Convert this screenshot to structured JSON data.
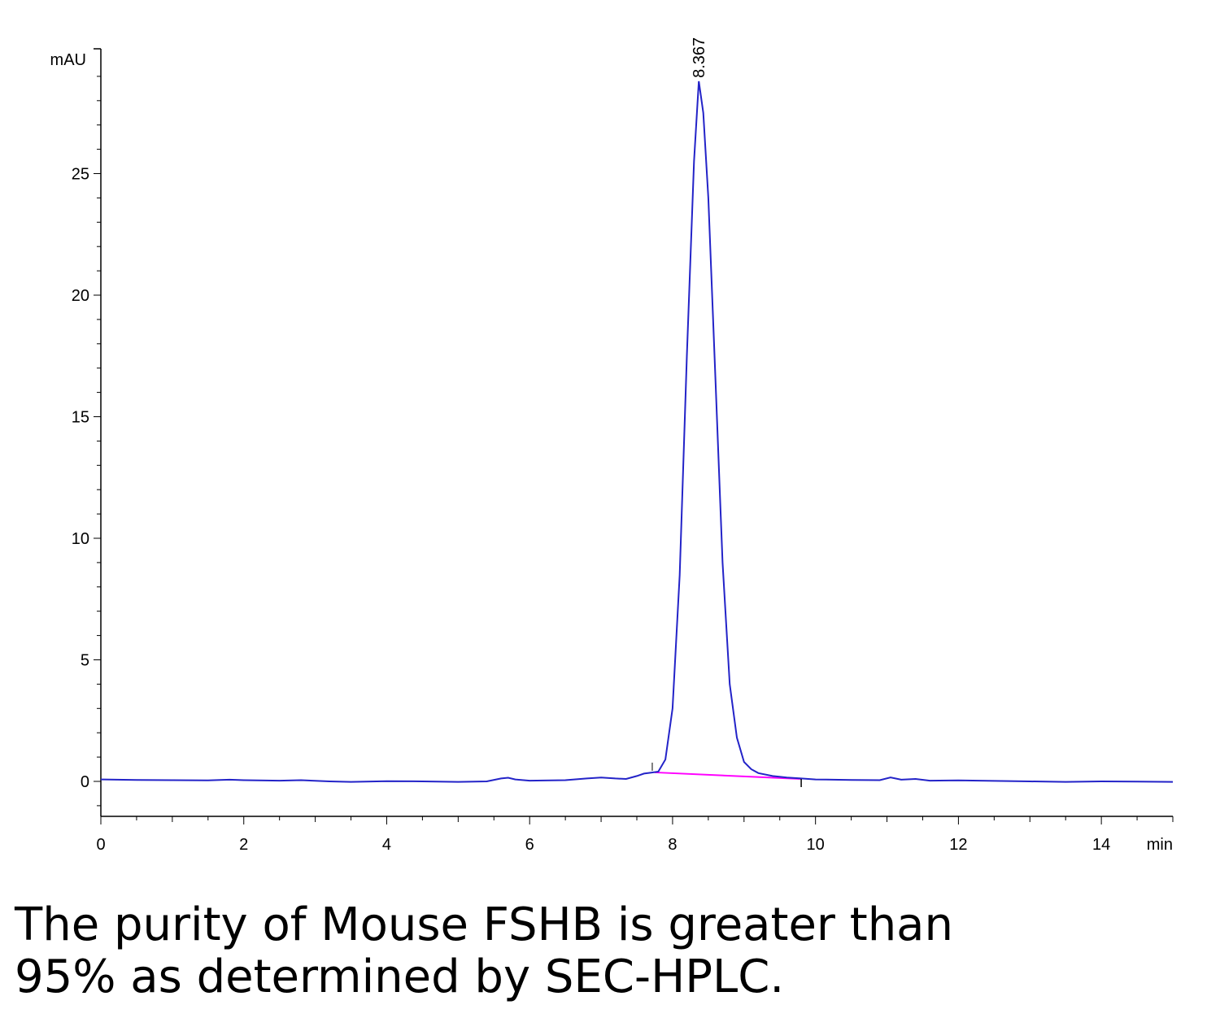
{
  "chart_data": {
    "type": "line",
    "ylabel": "mAU",
    "xlabel": "min",
    "xlim": [
      0,
      15
    ],
    "ylim": [
      -1.4,
      30
    ],
    "x_ticks": [
      0,
      2,
      4,
      6,
      8,
      10,
      12,
      14
    ],
    "y_ticks": [
      0,
      5,
      10,
      15,
      20,
      25
    ],
    "colors": {
      "trace": "#2323c8",
      "baseline": "#ff00ff",
      "axis": "#000000"
    },
    "peak": {
      "label": "8.367",
      "x": 8.367,
      "y": 28.8
    },
    "integration_baseline": {
      "start": [
        7.75,
        0.37
      ],
      "end": [
        9.8,
        0.1
      ]
    },
    "series": [
      {
        "values": [
          [
            0,
            0.08
          ],
          [
            0.5,
            0.06
          ],
          [
            1.0,
            0.05
          ],
          [
            1.5,
            0.04
          ],
          [
            1.8,
            0.07
          ],
          [
            2.0,
            0.05
          ],
          [
            2.5,
            0.03
          ],
          [
            2.8,
            0.05
          ],
          [
            3.2,
            0.0
          ],
          [
            3.5,
            -0.02
          ],
          [
            4.0,
            0.01
          ],
          [
            4.5,
            0.0
          ],
          [
            5.0,
            -0.02
          ],
          [
            5.4,
            0.0
          ],
          [
            5.6,
            0.12
          ],
          [
            5.7,
            0.15
          ],
          [
            5.8,
            0.08
          ],
          [
            6.0,
            0.03
          ],
          [
            6.5,
            0.05
          ],
          [
            6.8,
            0.12
          ],
          [
            7.0,
            0.16
          ],
          [
            7.2,
            0.12
          ],
          [
            7.35,
            0.1
          ],
          [
            7.5,
            0.22
          ],
          [
            7.6,
            0.32
          ],
          [
            7.7,
            0.36
          ],
          [
            7.8,
            0.4
          ],
          [
            7.9,
            0.9
          ],
          [
            8.0,
            3.0
          ],
          [
            8.1,
            8.5
          ],
          [
            8.2,
            17.5
          ],
          [
            8.3,
            25.5
          ],
          [
            8.367,
            28.8
          ],
          [
            8.43,
            27.5
          ],
          [
            8.5,
            24.0
          ],
          [
            8.6,
            16.5
          ],
          [
            8.7,
            9.0
          ],
          [
            8.8,
            4.0
          ],
          [
            8.9,
            1.8
          ],
          [
            9.0,
            0.8
          ],
          [
            9.1,
            0.5
          ],
          [
            9.2,
            0.34
          ],
          [
            9.4,
            0.22
          ],
          [
            9.6,
            0.16
          ],
          [
            9.8,
            0.12
          ],
          [
            10.0,
            0.08
          ],
          [
            10.5,
            0.06
          ],
          [
            10.9,
            0.05
          ],
          [
            11.05,
            0.16
          ],
          [
            11.2,
            0.07
          ],
          [
            11.4,
            0.1
          ],
          [
            11.6,
            0.03
          ],
          [
            12.0,
            0.04
          ],
          [
            12.5,
            0.02
          ],
          [
            13.0,
            0.0
          ],
          [
            13.5,
            -0.02
          ],
          [
            14.0,
            0.0
          ],
          [
            14.5,
            -0.01
          ],
          [
            15.0,
            -0.02
          ]
        ]
      }
    ]
  },
  "caption": {
    "line1": "The purity of Mouse FSHB is greater than",
    "line2": "95% as determined by SEC-HPLC."
  }
}
